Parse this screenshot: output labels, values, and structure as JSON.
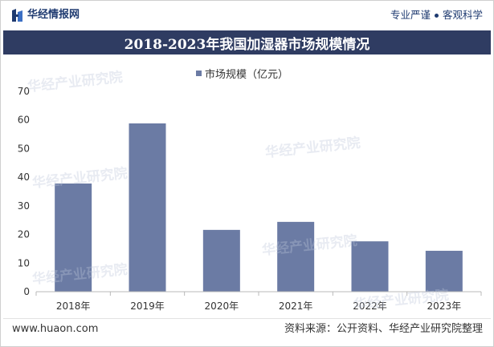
{
  "header": {
    "logo_text": "华经情报网",
    "slogan_left": "专业严谨",
    "slogan_right": "客观科学",
    "logo_icon": "huaon-logo-icon"
  },
  "chart_data": {
    "type": "bar",
    "title": "2018-2023年我国加湿器市场规模情况",
    "categories": [
      "2018年",
      "2019年",
      "2020年",
      "2021年",
      "2022年",
      "2023年"
    ],
    "series": [
      {
        "name": "市场规模（亿元）",
        "values": [
          37.8,
          58.8,
          21.6,
          24.4,
          17.6,
          14.3
        ],
        "color": "#6b7ba4"
      }
    ],
    "yticks": [
      0,
      10,
      20,
      30,
      40,
      50,
      60,
      70
    ],
    "ylim": [
      0,
      70
    ],
    "grid": false,
    "legend": "top-center"
  },
  "watermark": "华经产业研究院",
  "footer": {
    "website": "www.huaon.com",
    "source": "资料来源：公开资料、华经产业研究院整理"
  },
  "colors": {
    "title_bar": "#2f3c62",
    "brand": "#1e3a70"
  }
}
